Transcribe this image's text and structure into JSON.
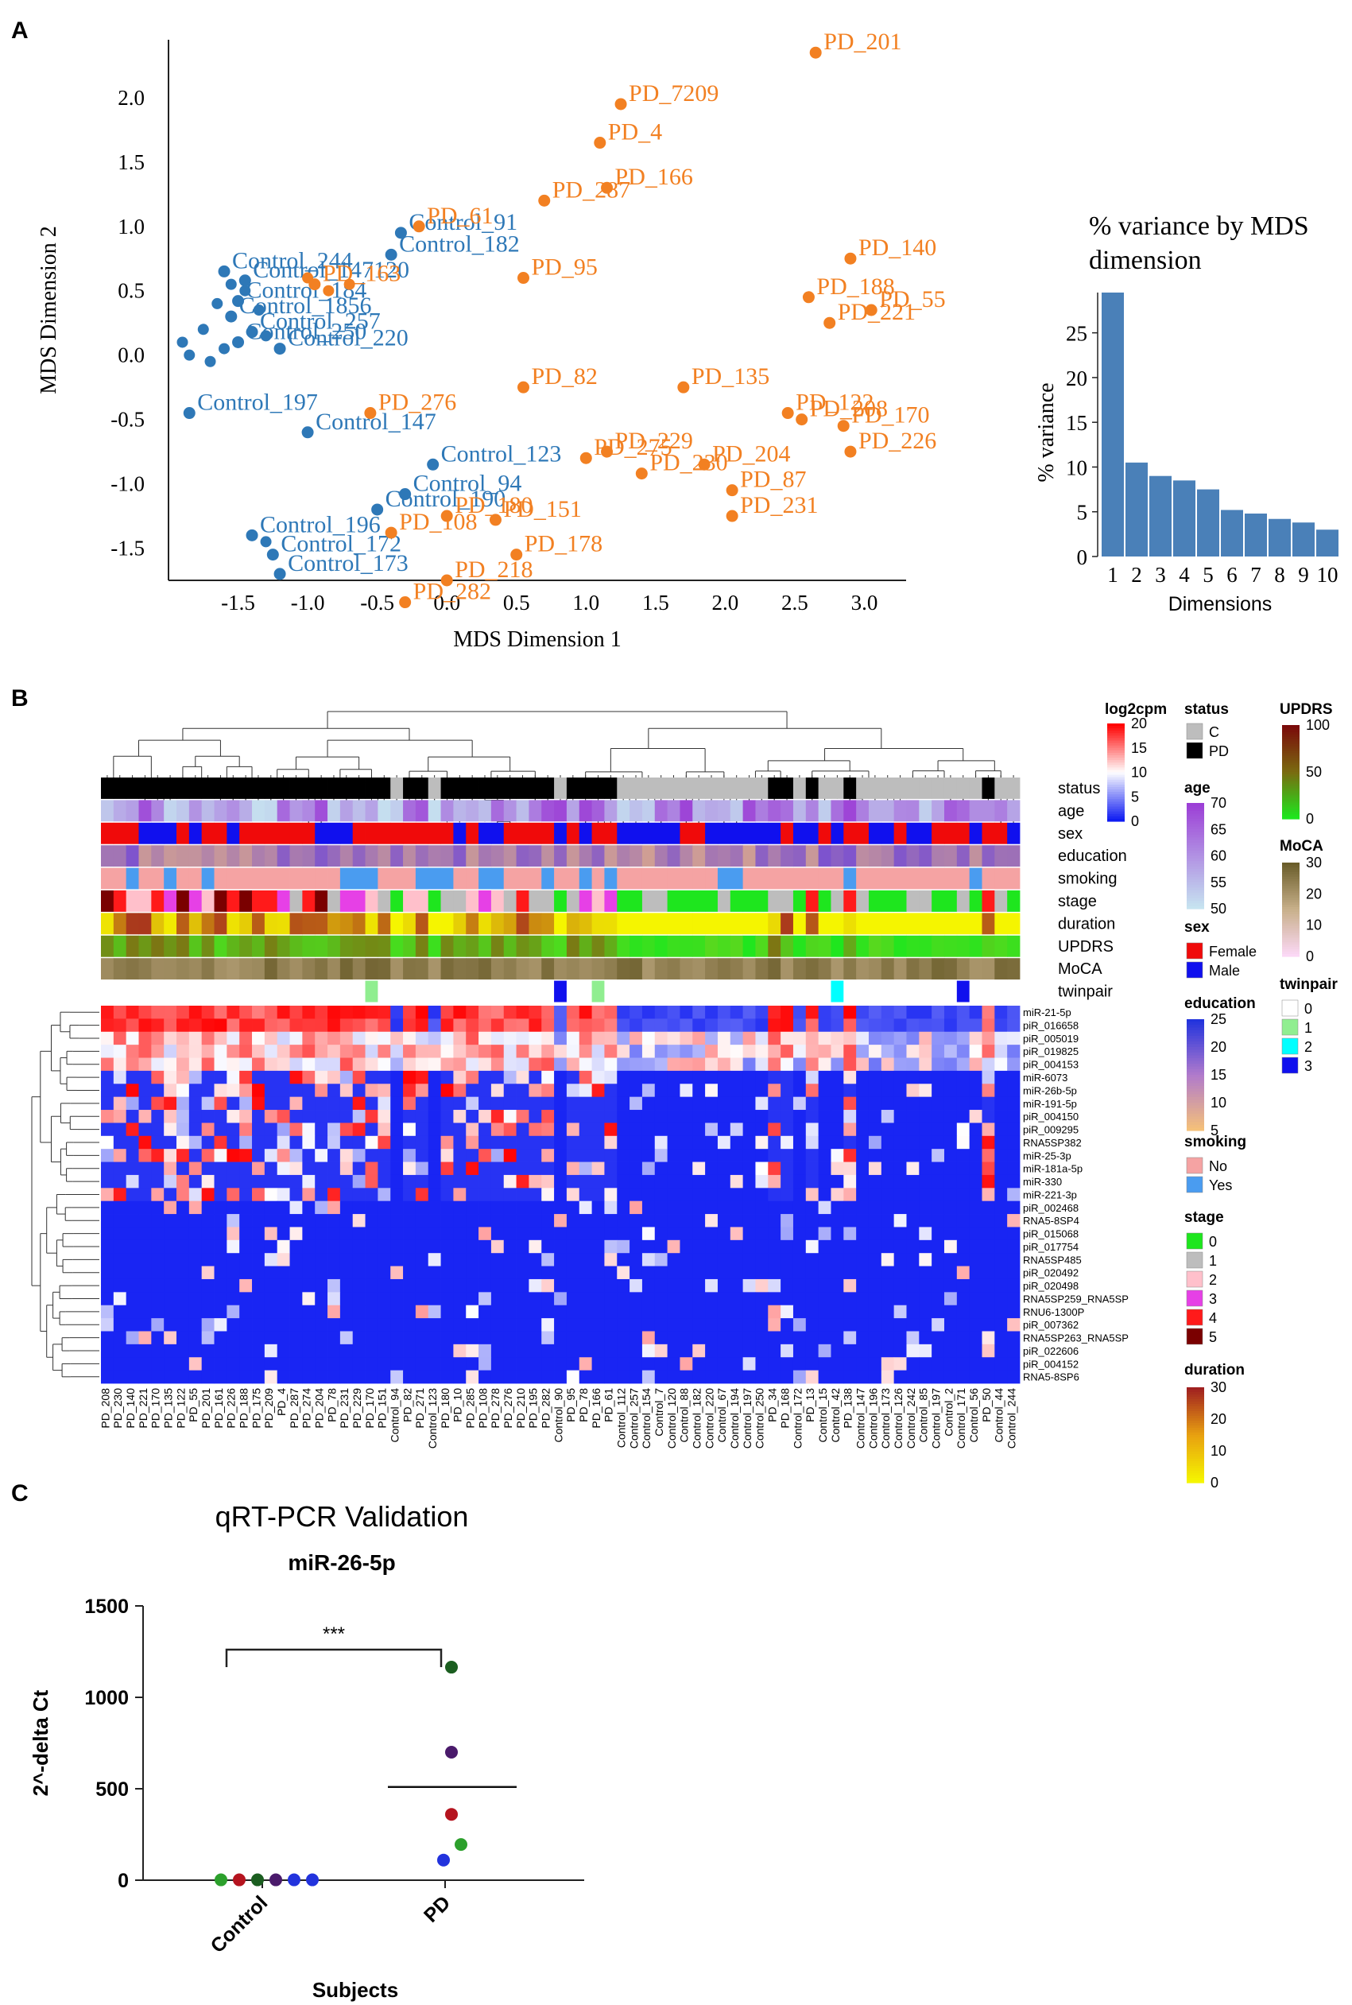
{
  "panels": {
    "a": "A",
    "b": "B",
    "c": "C"
  },
  "colors": {
    "control": "#2e78b7",
    "pd": "#f28022",
    "bar": "#4a80b8",
    "heat_low": "#0f1cf2",
    "heat_mid": "#ffffff",
    "heat_high": "#ff0000"
  },
  "chart_data": [
    {
      "type": "scatter",
      "panel": "A",
      "title": "",
      "xlabel": "MDS Dimension 1",
      "ylabel": "MDS Dimension 2",
      "xlim": [
        -2.0,
        3.3
      ],
      "ylim": [
        -1.75,
        2.45
      ],
      "xticks": [
        "-1.5",
        "-1.0",
        "-0.5",
        "0.0",
        "0.5",
        "1.0",
        "1.5",
        "2.0",
        "2.5",
        "3.0"
      ],
      "yticks": [
        "-1.5",
        "-1.0",
        "-0.5",
        "0.0",
        "0.5",
        "1.0",
        "1.5",
        "2.0"
      ],
      "series": [
        {
          "name": "Control",
          "points": [
            {
              "x": -0.33,
              "y": 0.95,
              "label": "Control_91"
            },
            {
              "x": -0.4,
              "y": 0.78,
              "label": "Control_182"
            },
            {
              "x": -1.6,
              "y": 0.65,
              "label": "Control_244"
            },
            {
              "x": -1.45,
              "y": 0.58,
              "label": "Control_147120"
            },
            {
              "x": -1.5,
              "y": 0.42,
              "label": "Control_184"
            },
            {
              "x": -1.55,
              "y": 0.3,
              "label": "Control_1856"
            },
            {
              "x": -1.4,
              "y": 0.18,
              "label": "Control_257"
            },
            {
              "x": -1.5,
              "y": 0.1,
              "label": "Control_250"
            },
            {
              "x": -1.2,
              "y": 0.05,
              "label": "Control_220"
            },
            {
              "x": -1.85,
              "y": -0.45,
              "label": "Control_197"
            },
            {
              "x": -1.0,
              "y": -0.6,
              "label": "Control_147"
            },
            {
              "x": -0.1,
              "y": -0.85,
              "label": "Control_123"
            },
            {
              "x": -0.3,
              "y": -1.08,
              "label": "Control_94"
            },
            {
              "x": -0.5,
              "y": -1.2,
              "label": "Control_190"
            },
            {
              "x": -1.4,
              "y": -1.4,
              "label": "Control_196"
            },
            {
              "x": -1.25,
              "y": -1.55,
              "label": "Control_172"
            },
            {
              "x": -1.2,
              "y": -1.7,
              "label": "Control_173"
            }
          ],
          "unlabeled_points": [
            {
              "x": -1.55,
              "y": 0.55
            },
            {
              "x": -1.45,
              "y": 0.5
            },
            {
              "x": -1.65,
              "y": 0.4
            },
            {
              "x": -1.35,
              "y": 0.35
            },
            {
              "x": -1.75,
              "y": 0.2
            },
            {
              "x": -1.3,
              "y": 0.15
            },
            {
              "x": -1.9,
              "y": 0.1
            },
            {
              "x": -1.6,
              "y": 0.05
            },
            {
              "x": -1.85,
              "y": 0.0
            },
            {
              "x": -1.7,
              "y": -0.05
            },
            {
              "x": -1.3,
              "y": -1.45
            }
          ]
        },
        {
          "name": "PD",
          "points": [
            {
              "x": 2.65,
              "y": 2.35,
              "label": "PD_201"
            },
            {
              "x": 1.25,
              "y": 1.95,
              "label": "PD_7209"
            },
            {
              "x": 1.1,
              "y": 1.65,
              "label": "PD_4"
            },
            {
              "x": 1.15,
              "y": 1.3,
              "label": "PD_166"
            },
            {
              "x": 0.7,
              "y": 1.2,
              "label": "PD_287"
            },
            {
              "x": -0.2,
              "y": 1.0,
              "label": "PD_61"
            },
            {
              "x": 0.55,
              "y": 0.6,
              "label": "PD_95"
            },
            {
              "x": -0.95,
              "y": 0.55,
              "label": "PD_163"
            },
            {
              "x": 2.9,
              "y": 0.75,
              "label": "PD_140"
            },
            {
              "x": 2.6,
              "y": 0.45,
              "label": "PD_188"
            },
            {
              "x": 3.05,
              "y": 0.35,
              "label": "PD_55"
            },
            {
              "x": 2.75,
              "y": 0.25,
              "label": "PD_221"
            },
            {
              "x": 0.55,
              "y": -0.25,
              "label": "PD_82"
            },
            {
              "x": 1.7,
              "y": -0.25,
              "label": "PD_135"
            },
            {
              "x": 2.45,
              "y": -0.45,
              "label": "PD_122"
            },
            {
              "x": 2.55,
              "y": -0.5,
              "label": "PD_208"
            },
            {
              "x": 2.85,
              "y": -0.55,
              "label": "PD_170"
            },
            {
              "x": 2.9,
              "y": -0.75,
              "label": "PD_226"
            },
            {
              "x": -0.55,
              "y": -0.45,
              "label": "PD_276"
            },
            {
              "x": 1.15,
              "y": -0.75,
              "label": "PD_229"
            },
            {
              "x": 1.0,
              "y": -0.8,
              "label": "PD_275"
            },
            {
              "x": 1.4,
              "y": -0.92,
              "label": "PD_230"
            },
            {
              "x": 1.85,
              "y": -0.85,
              "label": "PD_204"
            },
            {
              "x": 2.05,
              "y": -1.05,
              "label": "PD_87"
            },
            {
              "x": 2.05,
              "y": -1.25,
              "label": "PD_231"
            },
            {
              "x": 0.35,
              "y": -1.28,
              "label": "PD_151"
            },
            {
              "x": -0.4,
              "y": -1.38,
              "label": "PD_108"
            },
            {
              "x": 0.0,
              "y": -1.25,
              "label": "PD_180"
            },
            {
              "x": 0.5,
              "y": -1.55,
              "label": "PD_178"
            },
            {
              "x": 0.0,
              "y": -1.75,
              "label": "PD_218"
            },
            {
              "x": -0.3,
              "y": -1.92,
              "label": "PD_282"
            }
          ],
          "unlabeled_points": [
            {
              "x": -1.0,
              "y": 0.6
            },
            {
              "x": -0.85,
              "y": 0.5
            },
            {
              "x": -0.7,
              "y": 0.55
            }
          ]
        }
      ]
    },
    {
      "type": "bar",
      "panel": "A-inset",
      "title": "% variance by MDS dimension",
      "xlabel": "Dimensions",
      "ylabel": "% variance",
      "categories": [
        "1",
        "2",
        "3",
        "4",
        "5",
        "6",
        "7",
        "8",
        "9",
        "10"
      ],
      "values": [
        29.5,
        10.5,
        9.0,
        8.5,
        7.5,
        5.2,
        4.8,
        4.2,
        3.8,
        3.0
      ],
      "ylim": [
        0,
        29.5
      ],
      "yticks": [
        "0",
        "5",
        "10",
        "15",
        "20",
        "25"
      ]
    },
    {
      "type": "heatmap",
      "panel": "B",
      "title": "",
      "annotation_tracks": [
        "status",
        "age",
        "sex",
        "education",
        "smoking",
        "stage",
        "duration",
        "UPDRS",
        "MoCA",
        "twinpair"
      ],
      "rows": [
        "miR-21-5p",
        "piR_016658",
        "piR_005019",
        "piR_019825",
        "piR_004153",
        "miR-6073",
        "miR-26b-5p",
        "miR-191-5p",
        "piR_004150",
        "piR_009295",
        "RNA5SP382",
        "miR-25-3p",
        "miR-181a-5p",
        "miR-330",
        "miR-221-3p",
        "piR_002468",
        "RNA5-8SP4",
        "piR_015068",
        "piR_017754",
        "RNA5SP485",
        "piR_020492",
        "piR_020498",
        "RNA5SP259_RNA5SP",
        "RNU6-1300P",
        "piR_007362",
        "RNA5SP263_RNA5SP",
        "piR_022606",
        "piR_004152",
        "RNA5-8SP6"
      ],
      "columns": [
        "PD_208",
        "PD_230",
        "PD_140",
        "PD_221",
        "PD_170",
        "PD_135",
        "PD_122",
        "PD_55",
        "PD_201",
        "PD_161",
        "PD_226",
        "PD_188",
        "PD_175",
        "PD_209",
        "PD_4",
        "PD_287",
        "PD_274",
        "PD_204",
        "PD_78",
        "PD_231",
        "PD_229",
        "PD_170",
        "PD_151",
        "Control_94",
        "PD_82",
        "PD_271",
        "Control_123",
        "PD_180",
        "PD_10",
        "PD_285",
        "PD_108",
        "PD_278",
        "PD_276",
        "PD_210",
        "PD_195",
        "PD_282",
        "Control_90",
        "PD_95",
        "PD_78",
        "PD_166",
        "PD_61",
        "Control_112",
        "Control_257",
        "Control_154",
        "Control_7",
        "Control_120",
        "Control_88",
        "Control_182",
        "Control_220",
        "Control_67",
        "Control_194",
        "Control_197",
        "Control_250",
        "PD_34",
        "PD_168",
        "Control_172",
        "PD_13",
        "Control_15",
        "Control_42",
        "PD_138",
        "Control_147",
        "Control_196",
        "Control_173",
        "Control_126",
        "Control_242",
        "Control_85",
        "Control_197",
        "Control_2",
        "Control_171",
        "Control_56",
        "PD_50",
        "Control_44",
        "Control_244"
      ],
      "legends": {
        "log2cpm": {
          "title": "log2cpm",
          "ticks": [
            "20",
            "15",
            "10",
            "5",
            "0"
          ]
        },
        "status": {
          "title": "status",
          "items": [
            "C",
            "PD"
          ]
        },
        "age": {
          "title": "age",
          "ticks": [
            "70",
            "65",
            "60",
            "55",
            "50"
          ]
        },
        "sex": {
          "title": "sex",
          "items": [
            "Female",
            "Male"
          ]
        },
        "education": {
          "title": "education",
          "ticks": [
            "25",
            "20",
            "15",
            "10",
            "5"
          ]
        },
        "smoking": {
          "title": "smoking",
          "items": [
            "No",
            "Yes"
          ]
        },
        "stage": {
          "title": "stage",
          "items": [
            "0",
            "1",
            "2",
            "3",
            "4",
            "5"
          ]
        },
        "duration": {
          "title": "duration",
          "ticks": [
            "30",
            "20",
            "10",
            "0"
          ]
        },
        "UPDRS": {
          "title": "UPDRS",
          "ticks": [
            "100",
            "50",
            "0"
          ]
        },
        "MoCA": {
          "title": "MoCA",
          "ticks": [
            "30",
            "20",
            "10",
            "0"
          ]
        },
        "twinpair": {
          "title": "twinpair",
          "items": [
            "0",
            "1",
            "2",
            "3"
          ]
        }
      }
    },
    {
      "type": "scatter",
      "panel": "C",
      "title": "qRT-PCR Validation",
      "subtitle": "miR-26-5p",
      "xlabel": "Subjects",
      "ylabel": "2^-delta Ct",
      "categories": [
        "Control",
        "PD"
      ],
      "ylim": [
        0,
        1500
      ],
      "yticks": [
        "0",
        "500",
        "1000",
        "1500"
      ],
      "significance": "***",
      "series": [
        {
          "name": "Control",
          "values": [
            2,
            2,
            2,
            2,
            2,
            2
          ],
          "colors": [
            "#2ca02c",
            "#b5141f",
            "#1b5e20",
            "#4a1a6b",
            "#2233dd",
            "#2233dd"
          ]
        },
        {
          "name": "PD",
          "values": [
            1165,
            700,
            360,
            195,
            110
          ],
          "colors": [
            "#1b5e20",
            "#4a1a6b",
            "#b5141f",
            "#2ca02c",
            "#2233dd"
          ],
          "mean": 510
        }
      ]
    }
  ]
}
